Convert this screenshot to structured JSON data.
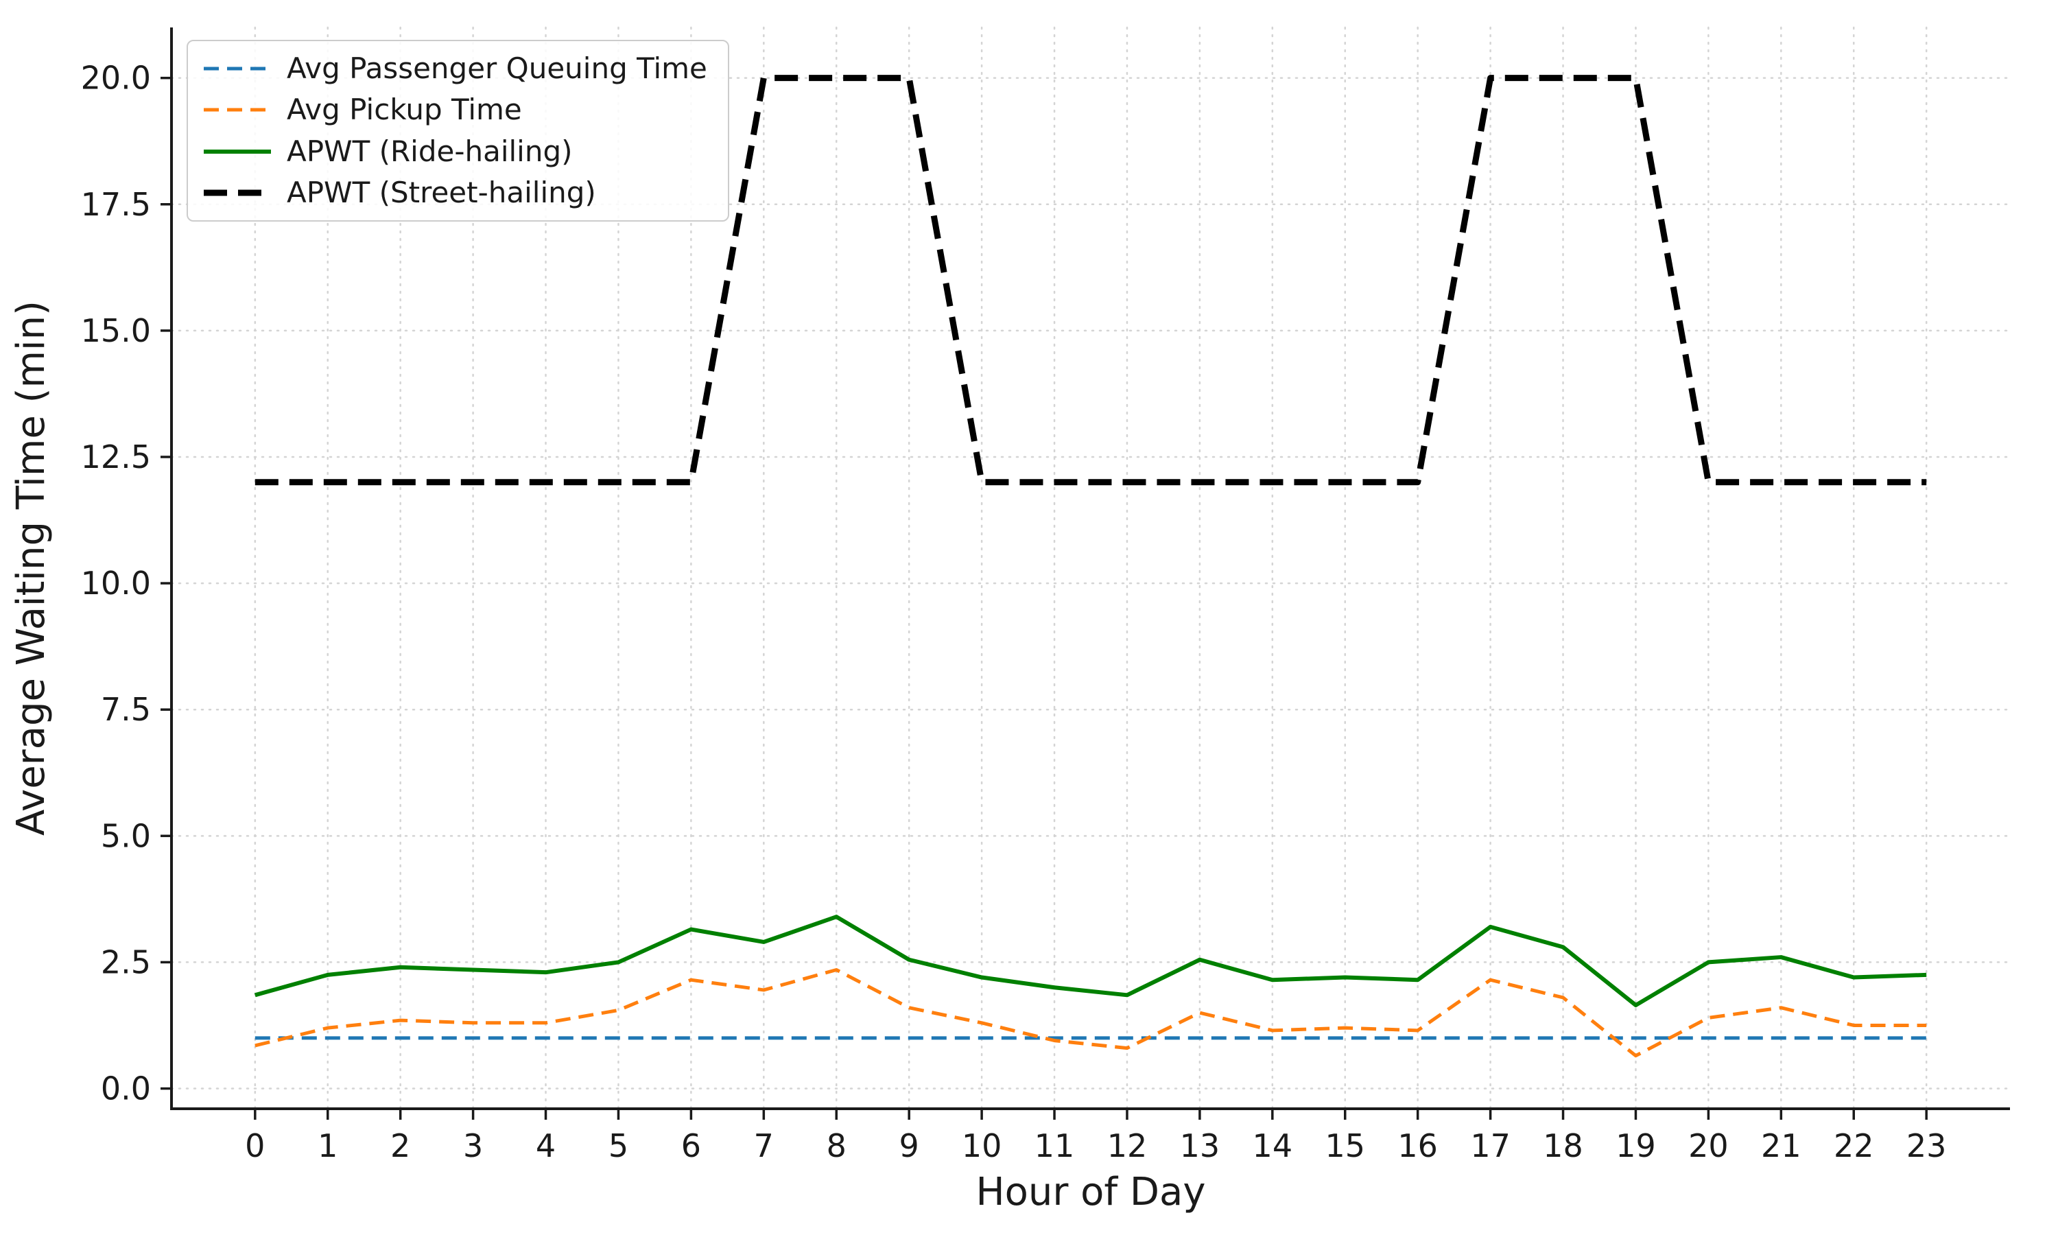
{
  "figure": {
    "background_color": "#ffffff",
    "axes_color": "#1a1a1a",
    "grid_color": "#d4d4d4",
    "grid_style": "dotted"
  },
  "chart_data": {
    "type": "line",
    "title": "",
    "xlabel": "Hour of Day",
    "ylabel": "Average Waiting Time (min)",
    "grid": true,
    "legend_position": "upper left",
    "xlim": [
      -1.15,
      24.15
    ],
    "ylim": [
      -0.4,
      21.0
    ],
    "x": [
      0,
      1,
      2,
      3,
      4,
      5,
      6,
      7,
      8,
      9,
      10,
      11,
      12,
      13,
      14,
      15,
      16,
      17,
      18,
      19,
      20,
      21,
      22,
      23
    ],
    "xtick_labels": [
      "0",
      "1",
      "2",
      "3",
      "4",
      "5",
      "6",
      "7",
      "8",
      "9",
      "10",
      "11",
      "12",
      "13",
      "14",
      "15",
      "16",
      "17",
      "18",
      "19",
      "20",
      "21",
      "22",
      "23"
    ],
    "yticks": [
      0,
      2.5,
      5,
      7.5,
      10,
      12.5,
      15,
      17.5,
      20
    ],
    "ytick_labels": [
      "0.0",
      "2.5",
      "5.0",
      "7.5",
      "10.0",
      "12.5",
      "15.0",
      "17.5",
      "20.0"
    ],
    "series": [
      {
        "name": "Avg Passenger Queuing Time",
        "color": "#1f77b4",
        "style": "dashed",
        "dash": "22 12",
        "width": 5,
        "values": [
          1.0,
          1.0,
          1.0,
          1.0,
          1.0,
          1.0,
          1.0,
          1.0,
          1.0,
          1.0,
          1.0,
          1.0,
          1.0,
          1.0,
          1.0,
          1.0,
          1.0,
          1.0,
          1.0,
          1.0,
          1.0,
          1.0,
          1.0,
          1.0
        ]
      },
      {
        "name": "Avg Pickup Time",
        "color": "#ff7f0e",
        "style": "dashed",
        "dash": "22 12",
        "width": 5,
        "values": [
          0.85,
          1.2,
          1.35,
          1.3,
          1.3,
          1.55,
          2.15,
          1.95,
          2.35,
          1.6,
          1.3,
          0.95,
          0.8,
          1.5,
          1.15,
          1.2,
          1.15,
          2.15,
          1.8,
          0.65,
          1.4,
          1.6,
          1.25,
          1.25
        ]
      },
      {
        "name": "APWT (Ride-hailing)",
        "color": "#008000",
        "style": "solid",
        "dash": "",
        "width": 6,
        "values": [
          1.85,
          2.25,
          2.4,
          2.35,
          2.3,
          2.5,
          3.15,
          2.9,
          3.4,
          2.55,
          2.2,
          2.0,
          1.85,
          2.55,
          2.15,
          2.2,
          2.15,
          3.2,
          2.8,
          1.65,
          2.5,
          2.6,
          2.2,
          2.25
        ]
      },
      {
        "name": "APWT (Street-hailing)",
        "color": "#000000",
        "style": "dashed",
        "dash": "34 16",
        "width": 9,
        "values": [
          12,
          12,
          12,
          12,
          12,
          12,
          12,
          20,
          20,
          20,
          12,
          12,
          12,
          12,
          12,
          12,
          12,
          20,
          20,
          20,
          12,
          12,
          12,
          12
        ]
      }
    ]
  }
}
